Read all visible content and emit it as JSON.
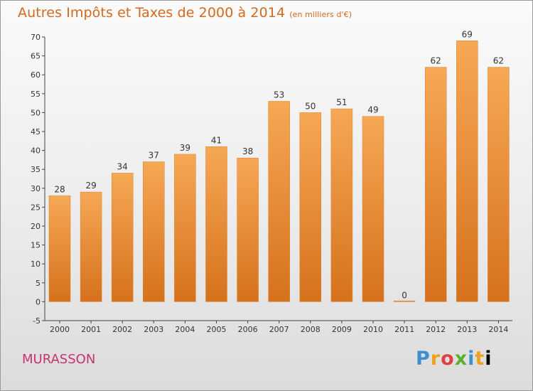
{
  "header": {
    "title": "Autres Impôts et Taxes de 2000 à 2014",
    "unit": "(en milliers d'€)"
  },
  "footer": {
    "commune": "MURASSON",
    "logo_letters": [
      "P",
      "r",
      "o",
      "x",
      "i",
      "t",
      "i"
    ]
  },
  "colors": {
    "bar_top": "#f6a855",
    "bar_bottom": "#d6711c",
    "title": "#d2691e",
    "commune": "#c8336e"
  },
  "chart_data": {
    "type": "bar",
    "categories": [
      "2000",
      "2001",
      "2002",
      "2003",
      "2004",
      "2005",
      "2006",
      "2007",
      "2008",
      "2009",
      "2010",
      "2011",
      "2012",
      "2013",
      "2014"
    ],
    "values": [
      28,
      29,
      34,
      37,
      39,
      41,
      38,
      53,
      50,
      51,
      49,
      0,
      62,
      69,
      62
    ],
    "title": "Autres Impôts et Taxes de 2000 à 2014",
    "xlabel": "",
    "ylabel": "",
    "ylim": [
      -5,
      70
    ],
    "yticks": [
      -5,
      0,
      5,
      10,
      15,
      20,
      25,
      30,
      35,
      40,
      45,
      50,
      55,
      60,
      65,
      70
    ],
    "grid": false,
    "data_labels": true
  }
}
